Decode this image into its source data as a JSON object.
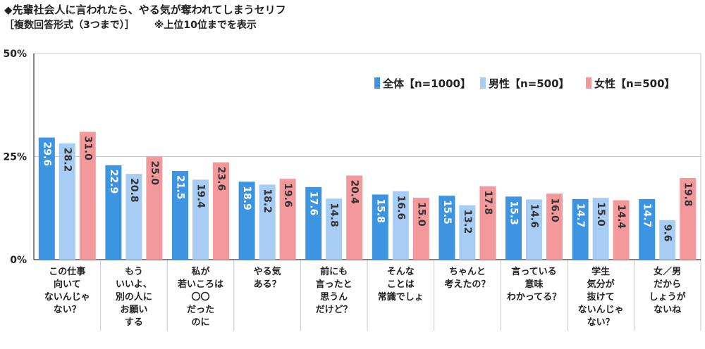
{
  "header": {
    "title": "◆先輩社会人に言われたら、やる気が奪われてしまうセリフ",
    "subtitle": "［複数回答形式（3つまで）］",
    "note": "※上位10位までを表示"
  },
  "colors": {
    "total": "#3d94e0",
    "male": "#a8cdf5",
    "female": "#f4999b",
    "grid": "#c8c8c8",
    "axis": "#333333"
  },
  "chart_data": {
    "type": "bar",
    "title": "先輩社会人に言われたら、やる気が奪われてしまうセリフ",
    "xlabel": "",
    "ylabel": "",
    "ylim": [
      0,
      50
    ],
    "yticks": [
      "0%",
      "25%",
      "50%"
    ],
    "ytick_values": [
      0,
      25,
      50
    ],
    "legend_position": "top-right",
    "categories": [
      "この仕事\n向いて\nないんじゃ\nない？",
      "もう\nいいよ、\n別の人に\nお願い\nする",
      "私が\n若いころは\n〇〇\nだった\nのに",
      "やる気\nある？",
      "前にも\n言ったと\n思うん\nだけど？",
      "そんな\nことは\n常識でしょ",
      "ちゃんと\n考えたの？",
      "言っている\n意味\nわかってる？",
      "学生\n気分が\n抜けて\nないんじゃ\nない？",
      "女／男\nだから\nしょうが\nないね"
    ],
    "series": [
      {
        "name": "全体【n=1000】",
        "key": "total",
        "values": [
          29.6,
          22.9,
          21.5,
          18.9,
          17.6,
          15.8,
          15.5,
          15.3,
          14.7,
          14.7
        ],
        "labels": [
          "29.6",
          "22.9",
          "21.5",
          "18.9",
          "17.6",
          "15.8",
          "15.5",
          "15.3",
          "14.7",
          "14.7"
        ]
      },
      {
        "name": "男性【n=500】",
        "key": "male",
        "values": [
          28.2,
          20.8,
          19.4,
          18.2,
          14.8,
          16.6,
          13.2,
          14.6,
          15.0,
          9.6
        ],
        "labels": [
          "28.2",
          "20.8",
          "19.4",
          "18.2",
          "14.8",
          "16.6",
          "13.2",
          "14.6",
          "15.0",
          "9.6"
        ]
      },
      {
        "name": "女性【n=500】",
        "key": "female",
        "values": [
          31.0,
          25.0,
          23.6,
          19.6,
          20.4,
          15.0,
          17.8,
          16.0,
          14.4,
          19.8
        ],
        "labels": [
          "31.0",
          "25.0",
          "23.6",
          "19.6",
          "20.4",
          "15.0",
          "17.8",
          "16.0",
          "14.4",
          "19.8"
        ]
      }
    ]
  }
}
